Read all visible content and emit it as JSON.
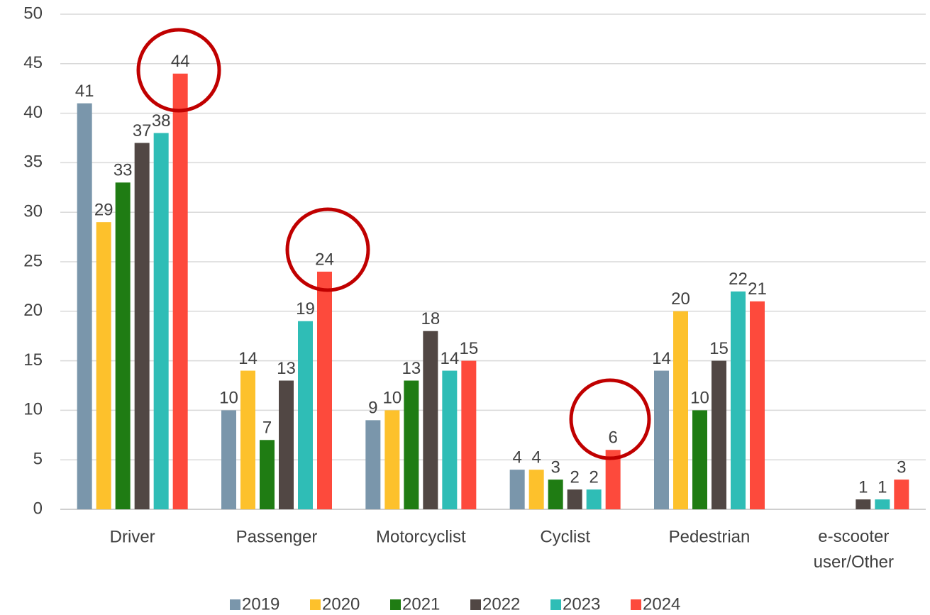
{
  "chart_data": {
    "type": "bar",
    "categories": [
      "Driver",
      "Passenger",
      "Motorcyclist",
      "Cyclist",
      "Pedestrian",
      "e-scooter user/Other"
    ],
    "series": [
      {
        "name": "2019",
        "color": "#7a96ab",
        "values": [
          41,
          10,
          9,
          4,
          14,
          null
        ]
      },
      {
        "name": "2020",
        "color": "#fdc12c",
        "values": [
          29,
          14,
          10,
          4,
          20,
          null
        ]
      },
      {
        "name": "2021",
        "color": "#1f7c13",
        "values": [
          33,
          7,
          13,
          3,
          10,
          null
        ]
      },
      {
        "name": "2022",
        "color": "#514744",
        "values": [
          37,
          13,
          18,
          2,
          15,
          1
        ]
      },
      {
        "name": "2023",
        "color": "#2fbdb6",
        "values": [
          38,
          19,
          14,
          2,
          22,
          1
        ]
      },
      {
        "name": "2024",
        "color": "#fd4a3c",
        "values": [
          44,
          24,
          15,
          6,
          21,
          3
        ]
      }
    ],
    "ylim": [
      0,
      50
    ],
    "yticks": [
      0,
      5,
      10,
      15,
      20,
      25,
      30,
      35,
      40,
      45,
      50
    ],
    "grid": true,
    "legend": "bottom"
  }
}
